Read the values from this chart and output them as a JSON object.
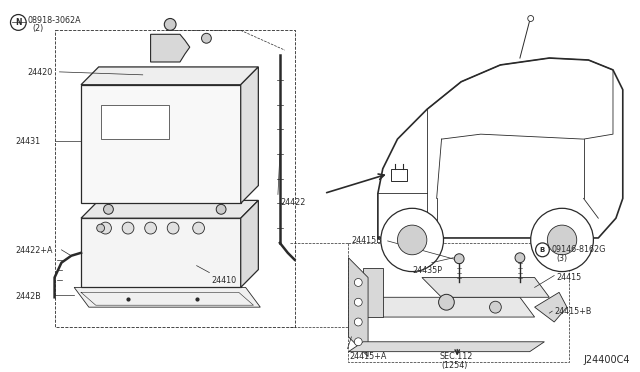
{
  "bg_color": "#ffffff",
  "line_color": "#2a2a2a",
  "diagram_code": "J24400C4",
  "figsize": [
    6.4,
    3.72
  ],
  "dpi": 100,
  "labels": {
    "part_N": "08918-3062A\n(2)",
    "24420": "24420",
    "24431": "24431",
    "24422": "24422",
    "24422A": "24422+A",
    "24410": "24410",
    "2442B": "2442B",
    "24415B": "24415B",
    "24435P": "24435P",
    "24415": "24415",
    "24415A": "24415+A",
    "24415B2": "24415+B",
    "part_B": "09146-8162G\n(3)",
    "sec": "SEC.112\n(1254)"
  }
}
